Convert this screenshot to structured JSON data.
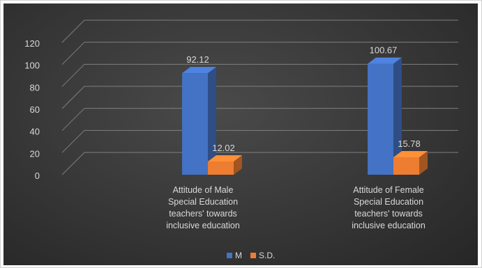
{
  "chart_data": {
    "type": "bar",
    "style": "3d-clustered-column",
    "categories": [
      [
        "Attitude of Male",
        "Special Education",
        "teachers' towards",
        "inclusive education"
      ],
      [
        "Attitude of Female",
        "Special Education",
        "teachers' towards",
        "inclusive education"
      ]
    ],
    "series": [
      {
        "name": "M",
        "values": [
          92.12,
          100.67
        ],
        "labels": [
          "92.12",
          "100.67"
        ],
        "color": "#4472C4"
      },
      {
        "name": "S.D.",
        "values": [
          12.02,
          15.78
        ],
        "labels": [
          "12.02",
          "15.78"
        ],
        "color": "#ED7D31"
      }
    ],
    "yticks": [
      "0",
      "20",
      "40",
      "60",
      "80",
      "100",
      "120"
    ],
    "ylim": [
      0,
      120
    ],
    "grid": true,
    "legend": "bottom",
    "background": "#3a3a3a"
  }
}
